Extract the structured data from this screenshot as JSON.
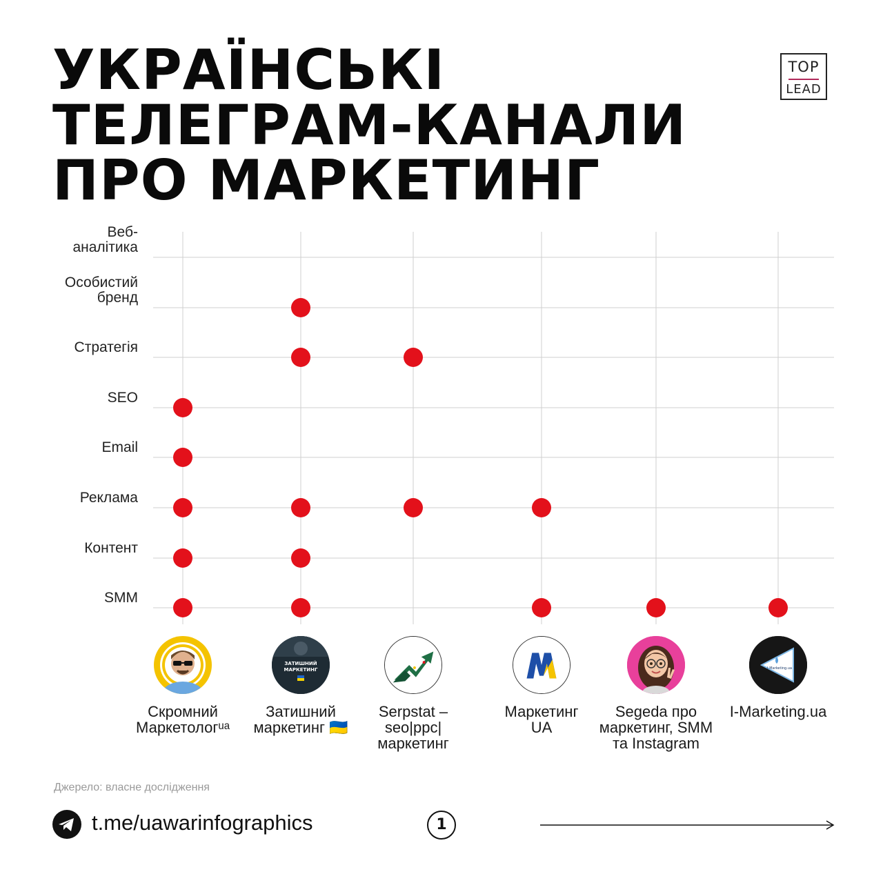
{
  "title_lines": [
    "УКРАЇНСЬКІ",
    "ТЕЛЕГРАМ-КАНАЛИ",
    "ПРО МАРКЕТИНГ"
  ],
  "logo": {
    "line1": "TOP",
    "line2": "LEAD",
    "accent": "#b02a5a"
  },
  "chart_data": {
    "type": "scatter",
    "marker_color": "#e3111b",
    "grid": true,
    "categories": [
      "Веб-аналітика",
      "Особистий бренд",
      "Стратегія",
      "SEO",
      "Email",
      "Реклама",
      "Контент",
      "SMM"
    ],
    "category_label_lines": [
      [
        "Веб-",
        "аналітика"
      ],
      [
        "Особистий",
        "бренд"
      ],
      [
        "Стратегія"
      ],
      [
        "SEO"
      ],
      [
        "Email"
      ],
      [
        "Реклама"
      ],
      [
        "Контент"
      ],
      [
        "SMM"
      ]
    ],
    "channels": [
      "Скромний Маркетологua",
      "Затишний маркетинг 🇺🇦",
      "Serpstat – seo|ppc| маркетинг",
      "Маркетинг UA",
      "Segeda про маркетинг, SMM та Instagram",
      "I-Marketing.ua"
    ],
    "matrix": [
      [
        0,
        0,
        0,
        0,
        0,
        0
      ],
      [
        0,
        1,
        0,
        0,
        0,
        0
      ],
      [
        0,
        1,
        1,
        0,
        0,
        0
      ],
      [
        1,
        0,
        0,
        0,
        0,
        0
      ],
      [
        1,
        0,
        0,
        0,
        0,
        0
      ],
      [
        1,
        1,
        1,
        1,
        0,
        0
      ],
      [
        1,
        1,
        0,
        0,
        0,
        0
      ],
      [
        1,
        1,
        0,
        1,
        1,
        1
      ]
    ]
  },
  "channels": [
    {
      "name": "Скромний\nМаркетологᵘᵃ",
      "avatar": "man-with-sunglasses-icon",
      "color": "#f2c200"
    },
    {
      "name": "Затишний\nмаркетинг 🇺🇦",
      "avatar": "zatyshnyi-marketing-logo",
      "avatar_text": "ЗАТИШНИЙ\nМАРКЕТИНГ",
      "color": "#1d2a33"
    },
    {
      "name": "Serpstat –\nseo|ppc|\nмаркетинг",
      "avatar": "serpstat-arrow-logo",
      "color": "#1f6f45"
    },
    {
      "name": "Маркетинг\nUA",
      "avatar": "m-letter-logo",
      "color": "#f5c400"
    },
    {
      "name": "Segeda про\nмаркетинг, SMM\nта Instagram",
      "avatar": "memoji-girl-icon",
      "color": "#e83e9a"
    },
    {
      "name": "I-Marketing.ua",
      "avatar": "triangle-play-logo",
      "avatar_text": "I-Marketing.ua",
      "color": "#151515"
    }
  ],
  "footer": {
    "source": "Джерело: власне дослідження",
    "link": "t.me/uawarinfographics",
    "page_number": "1"
  }
}
